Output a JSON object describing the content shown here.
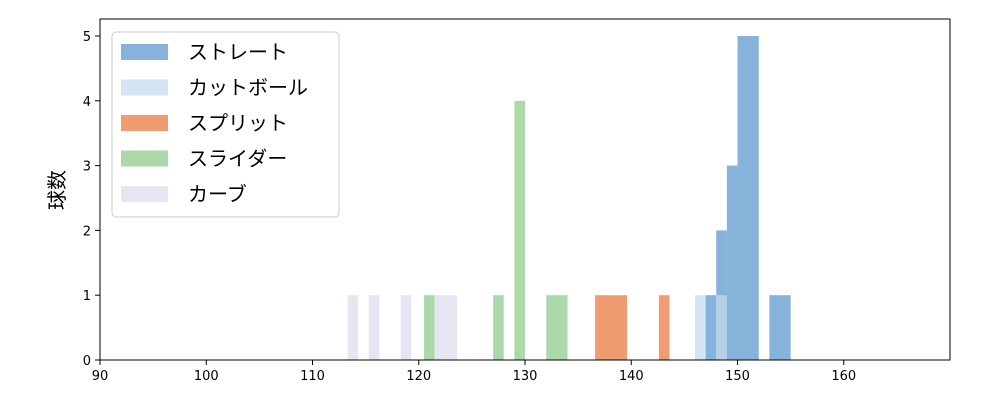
{
  "chart_data": {
    "type": "bar",
    "title": "",
    "xlabel": "",
    "ylabel": "球数",
    "xlim": [
      90,
      170
    ],
    "ylim": [
      0,
      5
    ],
    "xticks": [
      90,
      100,
      110,
      120,
      130,
      140,
      150,
      160
    ],
    "yticks": [
      0,
      1,
      2,
      3,
      4,
      5
    ],
    "grid": false,
    "legend_position": "top-left",
    "series": [
      {
        "name": "ストレート",
        "color": "#85b3d9",
        "opacity": 1,
        "bins": [
          [
            147,
            148,
            1
          ],
          [
            148,
            149,
            2
          ],
          [
            149,
            150,
            3
          ],
          [
            150,
            152,
            5
          ],
          [
            153,
            155,
            1
          ]
        ]
      },
      {
        "name": "カットボール",
        "color": "#c6dbef",
        "opacity": 0.75,
        "bins": [
          [
            146,
            147,
            1
          ],
          [
            148,
            149,
            1
          ]
        ]
      },
      {
        "name": "スプリット",
        "color": "#f09c70",
        "opacity": 1,
        "bins": [
          [
            136.6,
            139.6,
            1
          ],
          [
            142.6,
            143.6,
            1
          ]
        ]
      },
      {
        "name": "スライダー",
        "color": "#abd9aa",
        "opacity": 1,
        "bins": [
          [
            120.5,
            121.5,
            1
          ],
          [
            127,
            128,
            1
          ],
          [
            129,
            130,
            4
          ],
          [
            132,
            134,
            1
          ]
        ]
      },
      {
        "name": "カーブ",
        "color": "#e6e6f2",
        "opacity": 1,
        "bins": [
          [
            113.3,
            114.3,
            1
          ],
          [
            115.3,
            116.3,
            1
          ],
          [
            118.3,
            119.3,
            1
          ],
          [
            121.5,
            123.6,
            1
          ]
        ]
      }
    ]
  }
}
